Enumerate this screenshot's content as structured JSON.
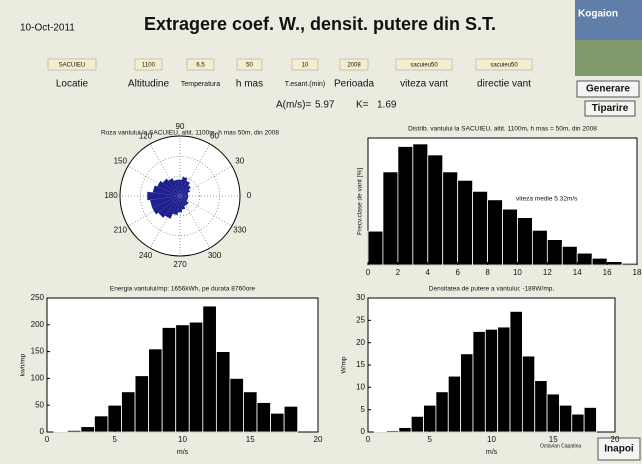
{
  "header": {
    "date": "10-Oct-2011",
    "title": "Extragere coef. W., densit. putere din S.T.",
    "logo": "Kogaion"
  },
  "fields": [
    {
      "value": "SACUIEU",
      "label": "Locatie"
    },
    {
      "value": "1100",
      "label": "Altitudine"
    },
    {
      "value": "6.5",
      "label": "Temperatura"
    },
    {
      "value": "50",
      "label": "h mas"
    },
    {
      "value": "10",
      "label": "T.esant.(min)"
    },
    {
      "value": "2008",
      "label": "Perioada"
    },
    {
      "value": "sacuieu50",
      "label": "viteza vant"
    },
    {
      "value": "sacuieu50",
      "label": "directie vant"
    }
  ],
  "buttons": {
    "generate": "Generare",
    "print": "Tiparire",
    "back": "Inapoi"
  },
  "results": {
    "a_label": "A(m/s)=",
    "a": 5.97,
    "k_label": "K=",
    "k": 1.69
  },
  "charts": [
    {
      "type": "polar",
      "title": "Roza vantului la SACUIEU, altit. 1100m, h mas 50m, din 2008",
      "color": "#1f1f8f",
      "angles": [
        0,
        15,
        30,
        45,
        60,
        75,
        90,
        105,
        120,
        135,
        150,
        165,
        180,
        195,
        210,
        225,
        240,
        255,
        270,
        285,
        300,
        315,
        330,
        345
      ],
      "values": [
        0.15,
        0.15,
        0.2,
        0.25,
        0.3,
        0.35,
        0.3,
        0.3,
        0.35,
        0.4,
        0.45,
        0.5,
        0.6,
        0.55,
        0.55,
        0.5,
        0.45,
        0.35,
        0.3,
        0.25,
        0.2,
        0.2,
        0.15,
        0.15
      ],
      "angle_ticks": [
        0,
        30,
        60,
        90,
        120,
        150,
        180,
        210,
        240,
        270,
        300,
        330
      ]
    },
    {
      "type": "bar",
      "title": "Distrib. vantului la SACUIEU, altit. 1100m, h mas = 50m, din 2008",
      "ylabel": "Frecv.clase de vant [%]",
      "annotation": "viteza medie 5.32m/s",
      "color": "#000000",
      "x": [
        0.5,
        1.5,
        2.5,
        3.5,
        4.5,
        5.5,
        6.5,
        7.5,
        8.5,
        9.5,
        10.5,
        11.5,
        12.5,
        13.5,
        14.5,
        15.5,
        16.5,
        17.5
      ],
      "values": [
        4,
        11,
        14,
        14.3,
        13,
        11,
        10,
        8.7,
        7.7,
        6.6,
        5.6,
        4.1,
        3,
        2.2,
        1.4,
        0.8,
        0.4,
        0.2
      ],
      "xlim": [
        0,
        18
      ],
      "xticks": [
        0,
        2,
        4,
        6,
        8,
        10,
        12,
        14,
        16,
        18
      ],
      "ylim": [
        0,
        15
      ]
    },
    {
      "type": "bar",
      "title": "Energia vantului/mp: 1656kWh, pe durata 8760ore",
      "ylabel": "kwh/mp",
      "xlabel": "m/s",
      "color": "#000000",
      "x": [
        1,
        2,
        3,
        4,
        5,
        6,
        7,
        8,
        9,
        10,
        11,
        12,
        13,
        14,
        15,
        16,
        17,
        18
      ],
      "values": [
        1,
        3,
        10,
        30,
        50,
        75,
        105,
        155,
        195,
        200,
        205,
        235,
        150,
        100,
        75,
        55,
        35,
        48
      ],
      "xlim": [
        0,
        20
      ],
      "xticks": [
        0,
        5,
        10,
        15,
        20
      ],
      "ylim": [
        0,
        250
      ],
      "yticks": [
        0,
        50,
        100,
        150,
        200,
        250
      ]
    },
    {
      "type": "bar",
      "title": "Densitatea de putere a vantului: -189W/mp,",
      "ylabel": "W/mp",
      "xlabel": "m/s",
      "color": "#000000",
      "x": [
        1,
        2,
        3,
        4,
        5,
        6,
        7,
        8,
        9,
        10,
        11,
        12,
        13,
        14,
        15,
        16,
        17,
        18
      ],
      "values": [
        0.1,
        0.3,
        1,
        3.5,
        6,
        9,
        12.5,
        17.5,
        22.5,
        23,
        23.5,
        27,
        17,
        11.5,
        8.5,
        6,
        4,
        5.5
      ],
      "xlim": [
        0,
        20
      ],
      "xticks": [
        0,
        5,
        10,
        15,
        20
      ],
      "ylim": [
        0,
        30
      ],
      "yticks": [
        0,
        5,
        10,
        15,
        20,
        25,
        30
      ]
    }
  ],
  "signature": "Octavian Capatina"
}
